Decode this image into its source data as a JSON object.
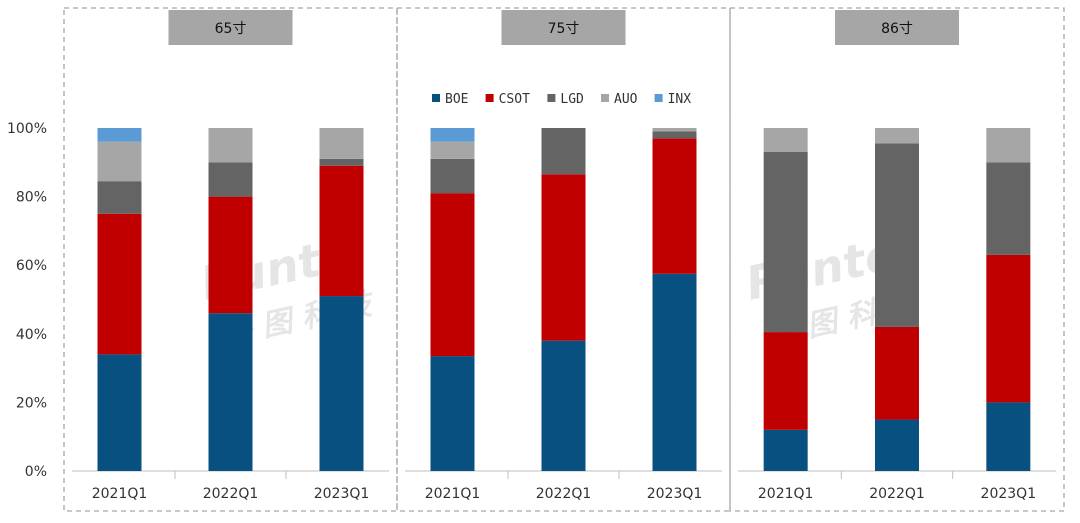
{
  "chart_data": {
    "type": "bar",
    "stacked": true,
    "ylim": [
      0,
      100
    ],
    "yticks": [
      "0%",
      "20%",
      "40%",
      "60%",
      "80%",
      "100%"
    ],
    "grid": false,
    "legend_position": "top (inside 75寸 panel)",
    "watermark": "Runto 洛图科技",
    "series": [
      {
        "name": "BOE",
        "color": "#08507f"
      },
      {
        "name": "CSOT",
        "color": "#c00000"
      },
      {
        "name": "LGD",
        "color": "#646464"
      },
      {
        "name": "AUO",
        "color": "#a6a6a6"
      },
      {
        "name": "INX",
        "color": "#5b9bd5"
      }
    ],
    "panels": [
      {
        "title": "65寸",
        "categories": [
          "2021Q1",
          "2022Q1",
          "2023Q1"
        ],
        "values": {
          "BOE": [
            34,
            46,
            51
          ],
          "CSOT": [
            41,
            34,
            38
          ],
          "LGD": [
            9.5,
            10,
            2
          ],
          "AUO": [
            11.5,
            10,
            9
          ],
          "INX": [
            4,
            0,
            0
          ]
        }
      },
      {
        "title": "75寸",
        "categories": [
          "2021Q1",
          "2022Q1",
          "2023Q1"
        ],
        "values": {
          "BOE": [
            33.5,
            38,
            57.5
          ],
          "CSOT": [
            47.5,
            48.5,
            39.5
          ],
          "LGD": [
            10,
            13.5,
            2
          ],
          "AUO": [
            5,
            0,
            1
          ],
          "INX": [
            4,
            0,
            0
          ]
        }
      },
      {
        "title": "86寸",
        "categories": [
          "2021Q1",
          "2022Q1",
          "2023Q1"
        ],
        "values": {
          "BOE": [
            12,
            15,
            20
          ],
          "CSOT": [
            28.5,
            27,
            43
          ],
          "LGD": [
            52.5,
            53.5,
            27
          ],
          "AUO": [
            7,
            4.5,
            10
          ],
          "INX": [
            0,
            0,
            0
          ]
        }
      }
    ]
  }
}
